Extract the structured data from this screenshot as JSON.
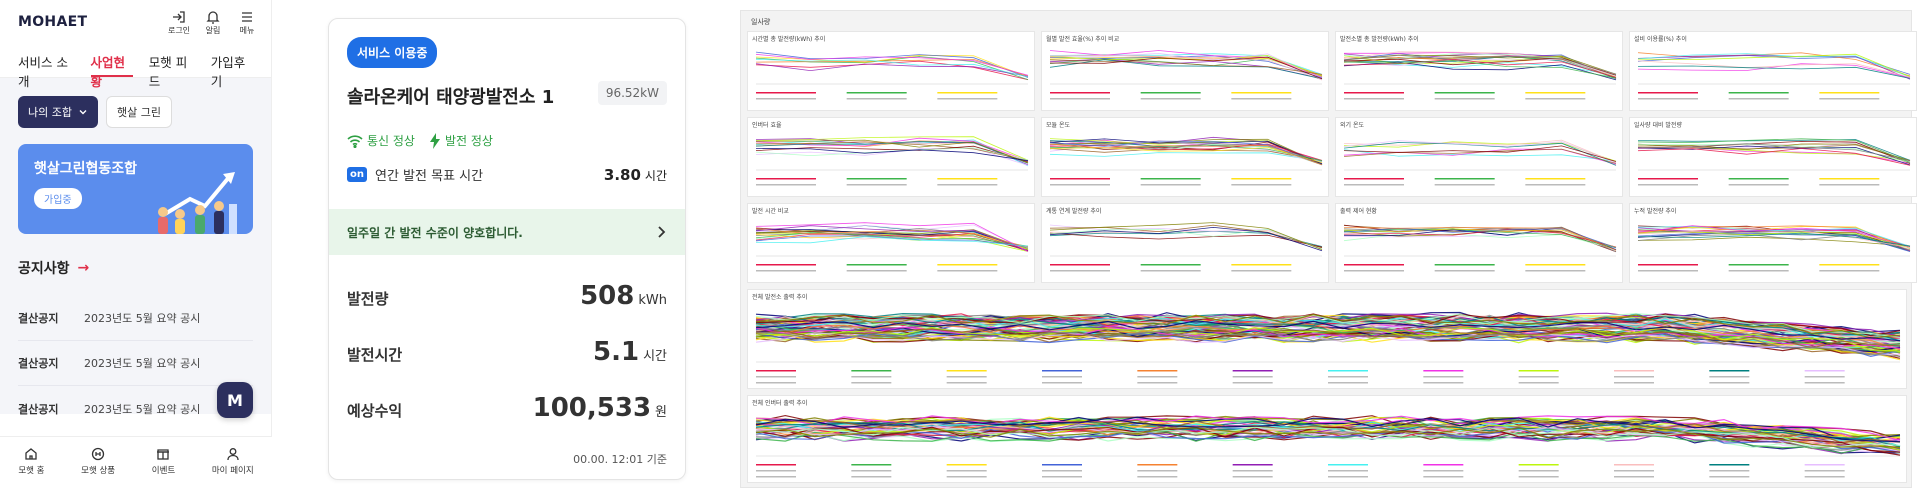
{
  "mobile": {
    "logo": "MOHAET",
    "header_icons": [
      {
        "label": "로그인",
        "icon": "login-icon"
      },
      {
        "label": "알림",
        "icon": "bell-icon"
      },
      {
        "label": "메뉴",
        "icon": "menu-icon"
      }
    ],
    "tabs": [
      "서비스 소개",
      "사업현황",
      "모햇 피드",
      "가입후기"
    ],
    "active_tab": "사업현황",
    "filter_select": "나의 조합",
    "filter_chip": "햇살 그린",
    "banner": {
      "title": "햇살그린협동조합",
      "button": "가입중"
    },
    "notice_title": "공지사항",
    "notices": [
      {
        "type": "결산공지",
        "text": "2023년도 5월 요약 공시"
      },
      {
        "type": "결산공지",
        "text": "2023년도 5월 요약 공시"
      },
      {
        "type": "결산공지",
        "text": "2023년도 5월 요약 공시"
      }
    ],
    "fab_label": "M",
    "nav": [
      {
        "label": "모햇 홈",
        "icon": "home-icon"
      },
      {
        "label": "모햇 상품",
        "icon": "product-icon"
      },
      {
        "label": "이벤트",
        "icon": "gift-icon"
      },
      {
        "label": "마이 페이지",
        "icon": "user-icon"
      }
    ],
    "colors": {
      "accent": "#e0304a",
      "navy": "#2c2f5e",
      "banner": "#5b8ded"
    }
  },
  "card": {
    "badge": "서비스 이용중",
    "title": "솔라온케어 태양광발전소 1",
    "capacity": "96.52kW",
    "status_comm": "통신 정상",
    "status_power": "발전 정상",
    "target_label": "연간 발전 목표 시간",
    "target_value": "3.80",
    "target_unit": "시간",
    "on_badge": "on",
    "banner_text": "일주일 간 발전 수준이 양호합니다.",
    "rows": [
      {
        "label": "발전량",
        "value": "508",
        "unit": "kWh"
      },
      {
        "label": "발전시간",
        "value": "5.1",
        "unit": "시간"
      },
      {
        "label": "예상수익",
        "value": "100,533",
        "unit": "원"
      }
    ],
    "timestamp": "00.00. 12:01 기준",
    "colors": {
      "badge": "#1f6fe5",
      "ok": "#2ea043",
      "banner_bg": "#e8f5ea"
    }
  },
  "dashboard": {
    "title": "일사량",
    "panels": [
      {
        "title": "시간별 총 발전량(kWh) 추이"
      },
      {
        "title": "월별 발전 효율(%) 추이 비교"
      },
      {
        "title": "발전소별 총 발전량(kWh) 추이"
      },
      {
        "title": "설비 이용률(%) 추이"
      },
      {
        "title": "인버터 효율"
      },
      {
        "title": "모듈 온도"
      },
      {
        "title": "외기 온도"
      },
      {
        "title": "일사량 대비 발전량"
      },
      {
        "title": "발전 시간 비교"
      },
      {
        "title": "계통 연계 발전량 추이"
      },
      {
        "title": "출력 제어 현황"
      },
      {
        "title": "누적 발전량 추이"
      },
      {
        "title": "전체 발전소 출력 추이"
      },
      {
        "title": "전체 인버터 출력 추이"
      }
    ]
  }
}
